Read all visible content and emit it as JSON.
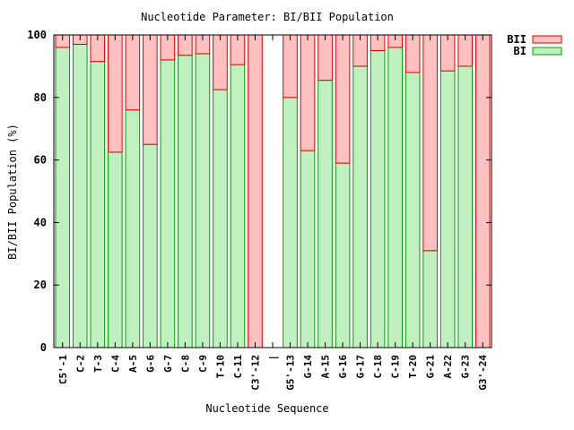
{
  "chart_data": {
    "type": "bar",
    "stacked": true,
    "title": "Nucleotide Parameter: BI/BII Population",
    "xlabel": "Nucleotide Sequence",
    "ylabel": "BI/BII Population (%)",
    "ylim": [
      0,
      100
    ],
    "yticks": [
      0,
      20,
      40,
      60,
      80,
      100
    ],
    "grid": false,
    "legend_position": "top-right, outside plot",
    "categories": [
      "C5'-1",
      "C-2",
      "T-3",
      "C-4",
      "A-5",
      "G-6",
      "G-7",
      "C-8",
      "C-9",
      "T-10",
      "C-11",
      "C3'-12",
      "|",
      "G5'-13",
      "G-14",
      "A-15",
      "G-16",
      "G-17",
      "C-18",
      "C-19",
      "T-20",
      "G-21",
      "A-22",
      "G-23",
      "G3'-24"
    ],
    "series": [
      {
        "name": "BII",
        "fill_color": "#ffc0c0",
        "edge_color": "#e00000",
        "values": [
          4,
          3,
          8.5,
          37.5,
          24,
          35,
          8,
          6.5,
          6,
          17.5,
          9.5,
          100,
          null,
          20,
          37,
          14.5,
          41,
          10,
          5,
          4,
          12,
          69,
          11.5,
          10,
          100
        ]
      },
      {
        "name": "BI",
        "fill_color": "#c0f0c0",
        "edge_color": "#00a000",
        "values": [
          96,
          97,
          91.5,
          62.5,
          76,
          65,
          92,
          93.5,
          94,
          82.5,
          90.5,
          0,
          null,
          80,
          63,
          85.5,
          59,
          90,
          95,
          96,
          88,
          31,
          88.5,
          90,
          0
        ]
      }
    ]
  }
}
